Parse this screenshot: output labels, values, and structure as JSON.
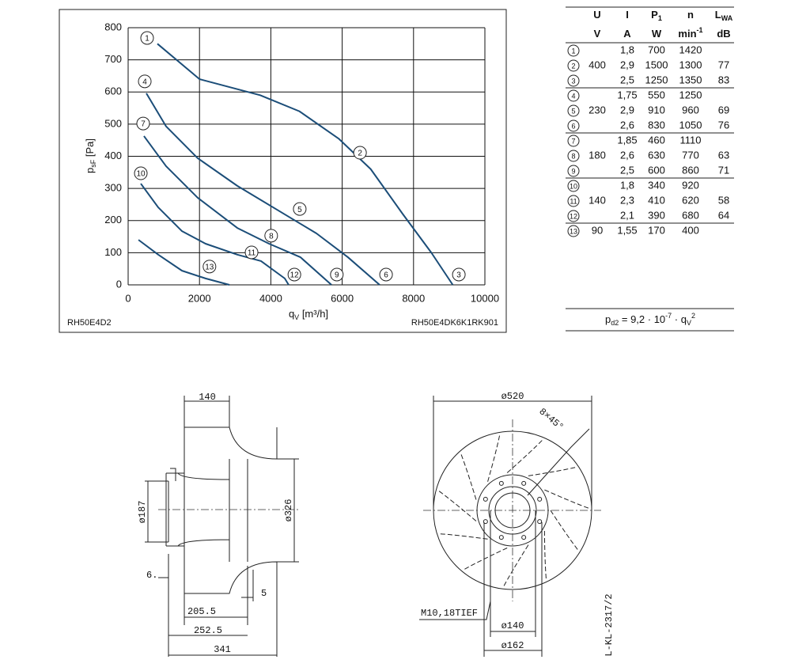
{
  "chart_data": {
    "type": "line",
    "xlabel": {
      "symbol": "q",
      "sub": "V",
      "unit": "[m³/h]"
    },
    "ylabel": {
      "symbol": "p",
      "sub": "sF",
      "unit": "[Pa]"
    },
    "xlim": [
      0,
      10000
    ],
    "ylim": [
      0,
      800
    ],
    "xticks": [
      0,
      2000,
      4000,
      6000,
      8000,
      10000
    ],
    "yticks": [
      0,
      100,
      200,
      300,
      400,
      500,
      600,
      700,
      800
    ],
    "grid": true,
    "series": [
      {
        "color": "#1b4d78",
        "x": [
          820,
          2000,
          3700,
          4800,
          5900,
          6800,
          7700,
          8500,
          9100
        ],
        "values": [
          750,
          640,
          590,
          540,
          455,
          360,
          220,
          100,
          0
        ]
      },
      {
        "color": "#1b4d78",
        "x": [
          510,
          1064,
          1950,
          3060,
          4170,
          5280,
          6160,
          7050
        ],
        "values": [
          596,
          493,
          394,
          308,
          234,
          160,
          86,
          0
        ]
      },
      {
        "color": "#1b4d78",
        "x": [
          443,
          1064,
          1950,
          3060,
          3950,
          4830,
          5700
        ],
        "values": [
          463,
          369,
          271,
          177,
          128,
          86,
          0
        ]
      },
      {
        "color": "#1b4d78",
        "x": [
          355,
          843,
          1510,
          2170,
          3060,
          3725,
          4390,
          4500
        ],
        "values": [
          315,
          241,
          167,
          128,
          94,
          74,
          20,
          0
        ]
      },
      {
        "color": "#1b4d78",
        "x": [
          290,
          843,
          1510,
          2170,
          2840
        ],
        "values": [
          140,
          94,
          44,
          20,
          0
        ]
      }
    ],
    "annotations": [
      {
        "text": "1",
        "x": 532,
        "y": 768
      },
      {
        "text": "2",
        "x": 6500,
        "y": 411
      },
      {
        "text": "3",
        "x": 9270,
        "y": 32
      },
      {
        "text": "4",
        "x": 466,
        "y": 633
      },
      {
        "text": "5",
        "x": 4810,
        "y": 236
      },
      {
        "text": "6",
        "x": 7230,
        "y": 32
      },
      {
        "text": "7",
        "x": 421,
        "y": 502
      },
      {
        "text": "8",
        "x": 4010,
        "y": 153
      },
      {
        "text": "9",
        "x": 5850,
        "y": 32
      },
      {
        "text": "10",
        "x": 355,
        "y": 347
      },
      {
        "text": "11",
        "x": 3460,
        "y": 101
      },
      {
        "text": "12",
        "x": 4660,
        "y": 32
      },
      {
        "text": "13",
        "x": 2280,
        "y": 57
      }
    ],
    "footnote_left": "RH50E4D2",
    "footnote_right": "RH50E4DK6K1RK901"
  },
  "table": {
    "headers": [
      {
        "sym": "U"
      },
      {
        "sym": "I"
      },
      {
        "sym": "P",
        "sub": "1"
      },
      {
        "sym": "n"
      },
      {
        "sym": "L",
        "sub": "WA"
      }
    ],
    "units": [
      {
        "text": "V"
      },
      {
        "text": "A"
      },
      {
        "text": "W"
      },
      {
        "text": "min",
        "sup": "-1"
      },
      {
        "text": "dB"
      }
    ],
    "rows": [
      [
        "1",
        null,
        "1,8",
        "700",
        "1420",
        null
      ],
      [
        "2",
        "400",
        "2,9",
        "1500",
        "1300",
        "77"
      ],
      [
        "3",
        null,
        "2,5",
        "1250",
        "1350",
        "83"
      ],
      [
        "4",
        null,
        "1,75",
        "550",
        "1250",
        null
      ],
      [
        "5",
        "230",
        "2,9",
        "910",
        "960",
        "69"
      ],
      [
        "6",
        null,
        "2,6",
        "830",
        "1050",
        "76"
      ],
      [
        "7",
        null,
        "1,85",
        "460",
        "1110",
        null
      ],
      [
        "8",
        "180",
        "2,6",
        "630",
        "770",
        "63"
      ],
      [
        "9",
        null,
        "2,5",
        "600",
        "860",
        "71"
      ],
      [
        "10",
        null,
        "1,8",
        "340",
        "920",
        null
      ],
      [
        "11",
        "140",
        "2,3",
        "410",
        "620",
        "58"
      ],
      [
        "12",
        null,
        "2,1",
        "390",
        "680",
        "64"
      ],
      [
        "13",
        "90",
        "1,55",
        "170",
        "400",
        null
      ]
    ],
    "formula": {
      "lhs": "p",
      "lhs_sub": "d2",
      "mid": " = 9,2 · 10",
      "exp": "-7",
      "dot": " · q",
      "q_sub": "V",
      "q_sup": "2"
    }
  },
  "drawing": {
    "side": {
      "d140": "140",
      "d187": "ø187",
      "d326": "ø326",
      "d6": "6.",
      "d205": "205.5",
      "d252": "252.5",
      "d341": "341",
      "d5": "5"
    },
    "front": {
      "d520": "ø520",
      "holes": "8×45°",
      "thread": "M10,18TIEF",
      "d140": "ø140",
      "d162": "ø162"
    },
    "code": "L-KL-2317/2"
  }
}
